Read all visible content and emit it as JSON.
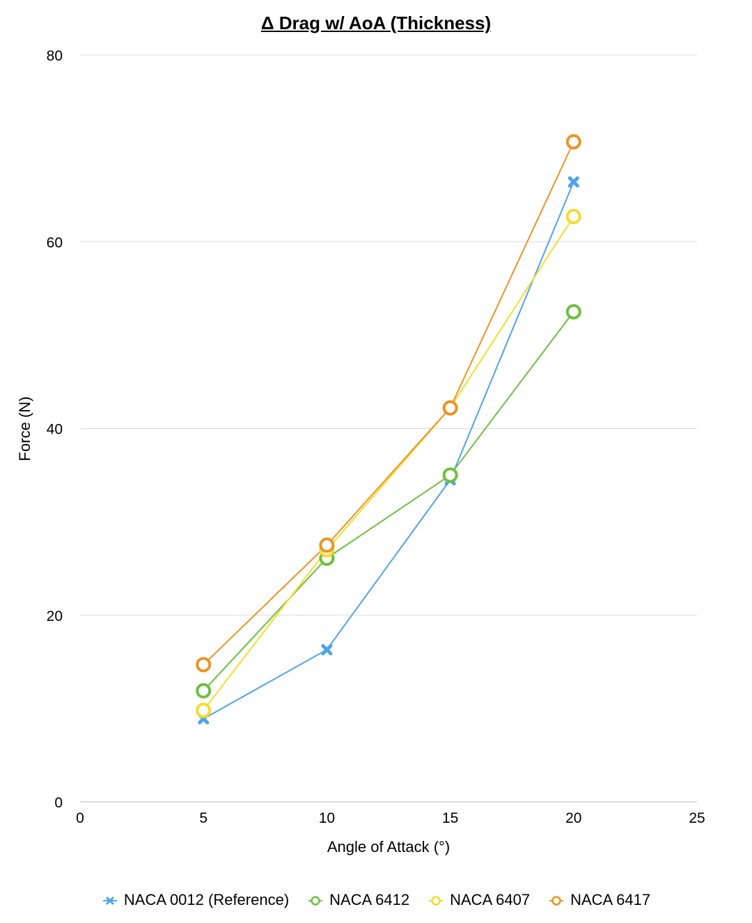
{
  "chart_data": {
    "type": "line",
    "title": "Δ Drag w/ AoA (Thickness)",
    "xlabel": "Angle of Attack (°)",
    "ylabel": "Force (N)",
    "xlim": [
      0,
      25
    ],
    "ylim": [
      0,
      80
    ],
    "xticks": [
      0,
      5,
      10,
      15,
      20,
      25
    ],
    "yticks": [
      0,
      20,
      40,
      60,
      80
    ],
    "grid": "horizontal",
    "legend_position": "bottom",
    "x": [
      5,
      10,
      15,
      20
    ],
    "series": [
      {
        "name": "NACA 0012 (Reference)",
        "color": "#4FA3EA",
        "marker": "x-mark",
        "values": [
          8.9,
          16.3,
          34.5,
          66.4
        ]
      },
      {
        "name": "NACA 6412",
        "color": "#6CBF3F",
        "marker": "ring",
        "values": [
          11.9,
          26.1,
          35.0,
          52.5
        ]
      },
      {
        "name": "NACA 6407",
        "color": "#F5DC2C",
        "marker": "ring",
        "values": [
          9.8,
          27.0,
          42.2,
          62.7
        ]
      },
      {
        "name": "NACA 6417",
        "color": "#EE9320",
        "marker": "ring",
        "values": [
          14.7,
          27.5,
          42.2,
          70.7
        ]
      }
    ]
  }
}
